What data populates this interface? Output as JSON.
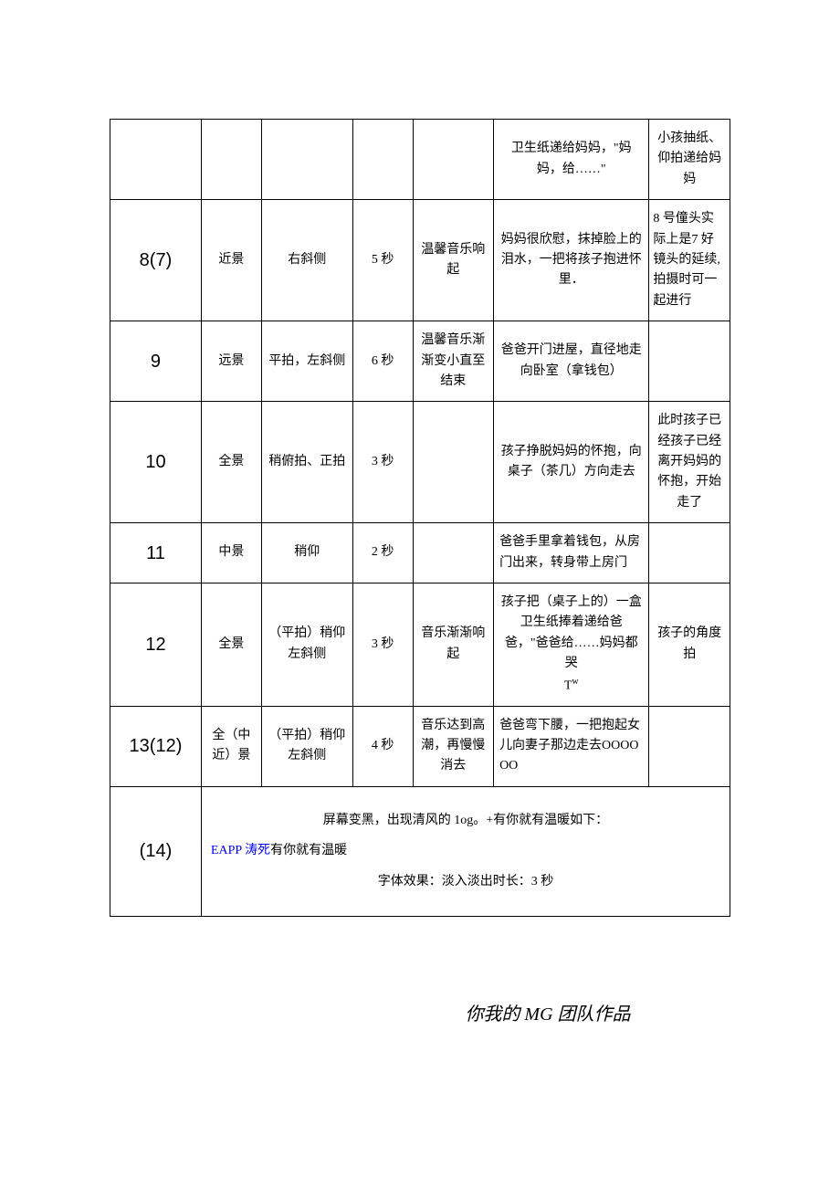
{
  "background_color": "#ffffff",
  "border_color": "#000000",
  "text_color": "#000000",
  "link_color": "#0000ff",
  "font_family": "SimSun",
  "font_size_body": 14,
  "font_size_col0": 20,
  "font_size_footer": 20,
  "rows": [
    {
      "c0": "",
      "c1": "",
      "c2": "",
      "c3": "",
      "c4": "",
      "c5": "卫生纸递给妈妈，\"妈妈，给……\"",
      "c6": "小孩抽纸、仰拍递给妈妈"
    },
    {
      "c0": "8(7)",
      "c1": "近景",
      "c2": "右斜侧",
      "c3": "5 秒",
      "c4": "温馨音乐响起",
      "c5": "妈妈很欣慰，抹掉脸上的泪水，一把将孩子抱进怀里．",
      "c6": "8 号僮头实际上是7 好镜头的延续,拍摄时可一起进行"
    },
    {
      "c0": "9",
      "c1": "远景",
      "c2": "平拍，左斜侧",
      "c3": "6 秒",
      "c4": "温馨音乐渐渐变小直至结束",
      "c5": "爸爸开门进屋，直径地走向卧室（拿钱包）",
      "c6": ""
    },
    {
      "c0": "10",
      "c1": "全景",
      "c2": "稍俯拍、正拍",
      "c3": "3 秒",
      "c4": "",
      "c5": "孩子挣脱妈妈的怀抱，向桌子（茶几）方向走去",
      "c6": "此时孩子已经孩子已经离开妈妈的怀抱，开始走了"
    },
    {
      "c0": "11",
      "c1": "中景",
      "c2": "稍仰",
      "c3": "2 秒",
      "c4": "",
      "c5": "爸爸手里拿着钱包，从房门出来，转身带上房门",
      "c6": ""
    },
    {
      "c0": "12",
      "c1": "全景",
      "c2": "（平拍）稍仰左斜侧",
      "c3": "3 秒",
      "c4": "音乐渐渐响起",
      "c5_prefix": "孩子把（桌子上的）一盒卫生纸捧着递给爸爸，\"爸爸给……妈妈都哭",
      "c5_suffix": "T",
      "c5_sup": "w",
      "c6": "孩子的角度拍"
    },
    {
      "c0": "13(12)",
      "c1": "全（中近）景",
      "c2": "（平拍）稍仰左斜侧",
      "c3": "4 秒",
      "c4": "音乐达到高潮，再慢慢消去",
      "c5": "爸爸弯下腰，一把抱起女儿向妻子那边走去OOOOOO",
      "c6": ""
    }
  ],
  "last_row": {
    "c0": "(14)",
    "line1": "屏幕变黑，出现清风的 1og。+有你就有温暖如下：",
    "line2_blue": "EAPP 涛死",
    "line2_rest": "有你就有温暖",
    "line3": "字体效果：淡入淡出时长：3 秒"
  },
  "footer": "你我的 MG 团队作品"
}
